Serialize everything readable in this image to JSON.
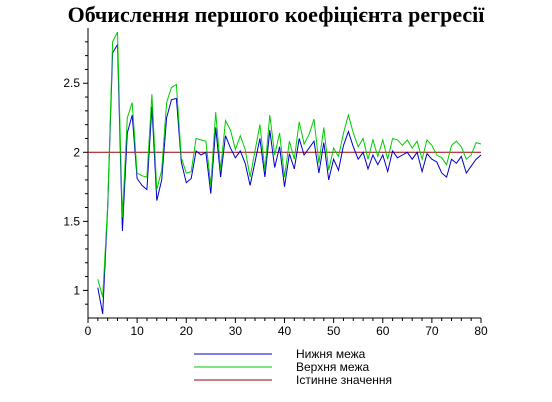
{
  "chart_data": {
    "type": "line",
    "title": "Обчислення першого коефіцієнта регресії",
    "xlabel": "",
    "ylabel": "",
    "xlim": [
      0,
      80
    ],
    "ylim": [
      0.8,
      2.9
    ],
    "x_ticks": [
      0,
      10,
      20,
      30,
      40,
      50,
      60,
      70,
      80
    ],
    "y_ticks": [
      1,
      1.5,
      2,
      2.5
    ],
    "grid": false,
    "legend_position": "bottom",
    "reference_line": {
      "name": "Істинне значення",
      "value": 2,
      "color": "#990000"
    },
    "x": [
      2,
      3,
      4,
      5,
      6,
      7,
      8,
      9,
      10,
      11,
      12,
      13,
      14,
      15,
      16,
      17,
      18,
      19,
      20,
      21,
      22,
      23,
      24,
      25,
      26,
      27,
      28,
      29,
      30,
      31,
      32,
      33,
      34,
      35,
      36,
      37,
      38,
      39,
      40,
      41,
      42,
      43,
      44,
      45,
      46,
      47,
      48,
      49,
      50,
      51,
      52,
      53,
      54,
      55,
      56,
      57,
      58,
      59,
      60,
      61,
      62,
      63,
      64,
      65,
      66,
      67,
      68,
      69,
      70,
      71,
      72,
      73,
      74,
      75,
      76,
      77,
      78,
      79,
      80
    ],
    "series": [
      {
        "name": "Нижня межа",
        "color": "#0000cc",
        "values": [
          1.02,
          0.83,
          1.6,
          2.72,
          2.78,
          1.43,
          2.14,
          2.27,
          1.81,
          1.76,
          1.73,
          2.33,
          1.65,
          1.8,
          2.25,
          2.38,
          2.39,
          1.93,
          1.78,
          1.81,
          2.01,
          1.98,
          2.0,
          1.7,
          2.18,
          1.82,
          2.12,
          2.03,
          1.96,
          2.01,
          1.92,
          1.76,
          1.93,
          2.1,
          1.82,
          2.16,
          1.89,
          2.04,
          1.75,
          1.99,
          1.88,
          2.1,
          1.98,
          2.03,
          2.08,
          1.85,
          2.07,
          1.8,
          1.95,
          1.87,
          2.05,
          2.15,
          2.04,
          1.95,
          2.0,
          1.88,
          1.98,
          1.91,
          1.98,
          1.86,
          2.01,
          1.96,
          1.98,
          2.0,
          1.95,
          2.0,
          1.86,
          1.99,
          1.95,
          1.93,
          1.85,
          1.82,
          1.95,
          1.92,
          1.97,
          1.85,
          1.9,
          1.95,
          1.98
        ]
      },
      {
        "name": "Верхня межа",
        "color": "#00cc00",
        "values": [
          1.08,
          0.95,
          1.62,
          2.8,
          2.87,
          1.53,
          2.25,
          2.36,
          1.85,
          1.83,
          1.82,
          2.42,
          1.73,
          1.87,
          2.36,
          2.47,
          2.49,
          1.96,
          1.85,
          1.86,
          2.1,
          2.09,
          2.08,
          1.76,
          2.29,
          1.87,
          2.23,
          2.16,
          2.02,
          2.12,
          2.02,
          1.82,
          2.01,
          2.2,
          1.87,
          2.27,
          1.98,
          2.14,
          1.82,
          2.08,
          1.95,
          2.22,
          2.06,
          2.13,
          2.24,
          1.92,
          2.18,
          1.87,
          2.03,
          1.97,
          2.14,
          2.27,
          2.14,
          2.04,
          2.1,
          1.95,
          2.09,
          1.97,
          2.09,
          1.95,
          2.1,
          2.09,
          2.05,
          2.09,
          2.03,
          2.08,
          1.95,
          2.09,
          2.05,
          1.98,
          1.96,
          1.91,
          2.05,
          2.08,
          2.04,
          1.95,
          1.98,
          2.07,
          2.06
        ]
      }
    ]
  }
}
